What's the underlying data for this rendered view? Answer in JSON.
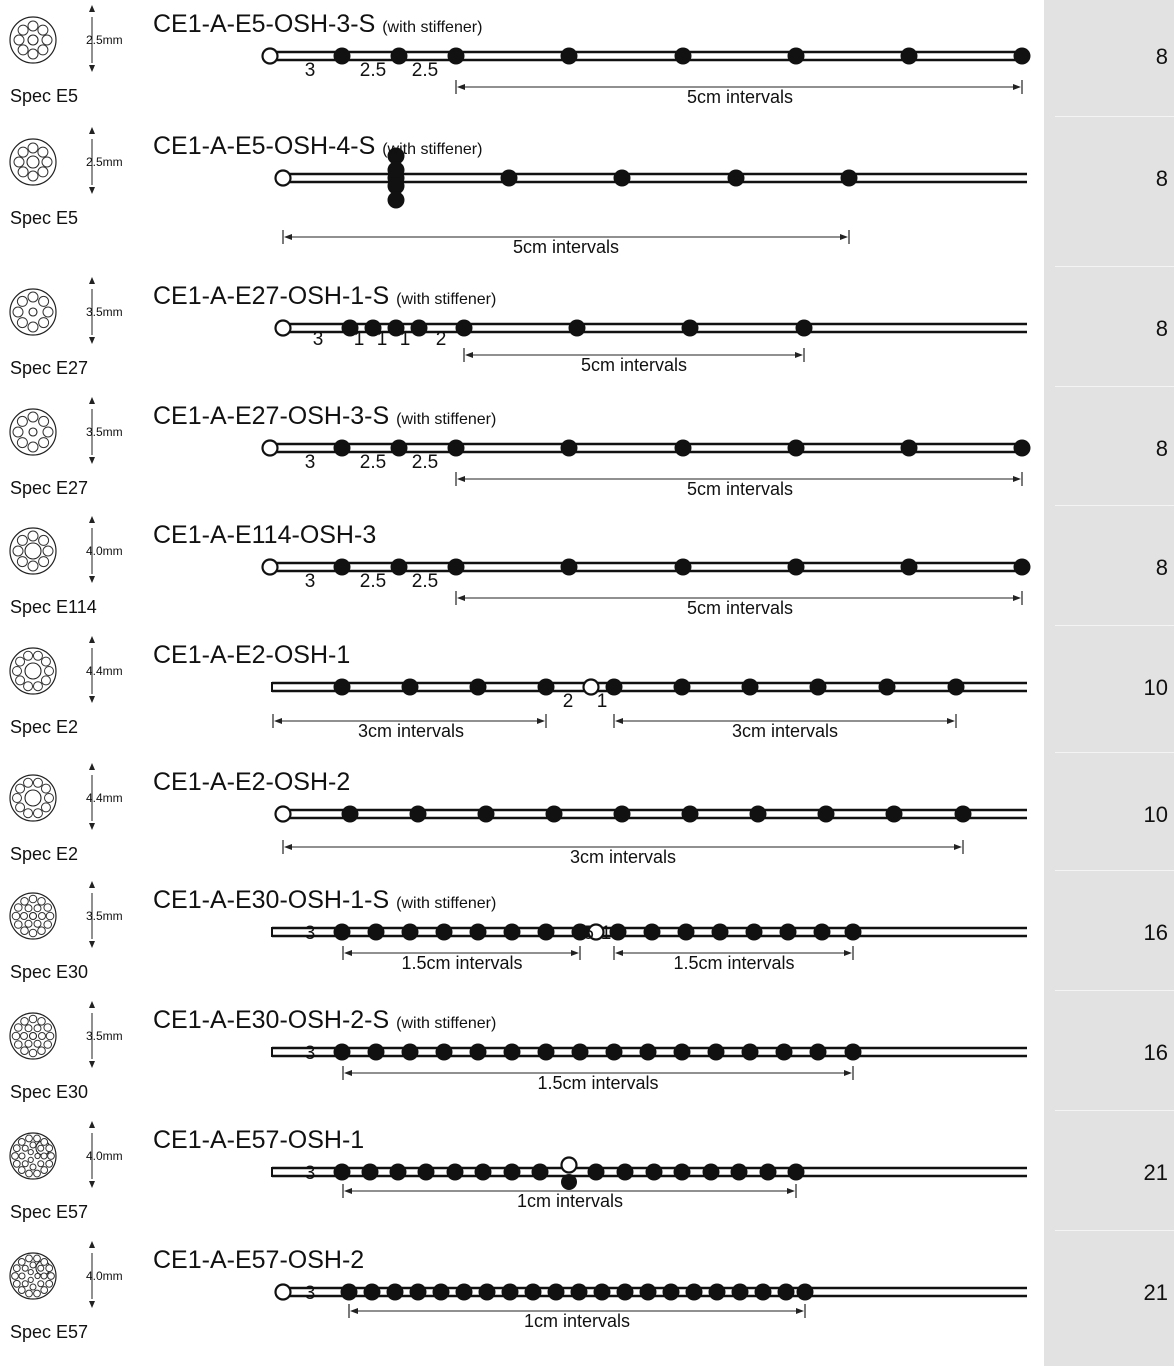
{
  "rows": [
    {
      "title": "CE1-A-E5-OSH-3-S",
      "note": "(with stiffener)",
      "spec": "Spec E5",
      "diameter": "2.5mm",
      "count": "8",
      "gaps": [
        {
          "x": 310,
          "t": "3"
        },
        {
          "x": 373,
          "t": "2.5"
        },
        {
          "x": 425,
          "t": "2.5"
        }
      ],
      "intervals": [
        {
          "label": "5cm intervals"
        }
      ]
    },
    {
      "title": "CE1-A-E5-OSH-4-S",
      "note": "(with stiffener)",
      "spec": "Spec E5",
      "diameter": "2.5mm",
      "count": "8",
      "gaps": [],
      "intervals": [
        {
          "label": "5cm intervals"
        }
      ]
    },
    {
      "title": "CE1-A-E27-OSH-1-S",
      "note": "(with stiffener)",
      "spec": "Spec E27",
      "diameter": "3.5mm",
      "count": "8",
      "gaps": [
        {
          "x": 318,
          "t": "3"
        },
        {
          "x": 359,
          "t": "1"
        },
        {
          "x": 382,
          "t": "1"
        },
        {
          "x": 405,
          "t": "1"
        },
        {
          "x": 441,
          "t": "2"
        }
      ],
      "intervals": [
        {
          "label": "5cm intervals"
        }
      ]
    },
    {
      "title": "CE1-A-E27-OSH-3-S",
      "note": "(with stiffener)",
      "spec": "Spec E27",
      "diameter": "3.5mm",
      "count": "8",
      "gaps": [
        {
          "x": 310,
          "t": "3"
        },
        {
          "x": 373,
          "t": "2.5"
        },
        {
          "x": 425,
          "t": "2.5"
        }
      ],
      "intervals": [
        {
          "label": "5cm intervals"
        }
      ]
    },
    {
      "title": "CE1-A-E114-OSH-3",
      "note": "",
      "spec": "Spec E114",
      "diameter": "4.0mm",
      "count": "8",
      "gaps": [
        {
          "x": 310,
          "t": "3"
        },
        {
          "x": 373,
          "t": "2.5"
        },
        {
          "x": 425,
          "t": "2.5"
        }
      ],
      "intervals": [
        {
          "label": "5cm intervals"
        }
      ]
    },
    {
      "title": "CE1-A-E2-OSH-1",
      "note": "",
      "spec": "Spec E2",
      "diameter": "4.4mm",
      "count": "10",
      "gaps": [
        {
          "x": 568,
          "t": "2"
        },
        {
          "x": 602,
          "t": "1"
        }
      ],
      "intervals": [
        {
          "label": "3cm intervals"
        },
        {
          "label": "3cm intervals"
        }
      ]
    },
    {
      "title": "CE1-A-E2-OSH-2",
      "note": "",
      "spec": "Spec E2",
      "diameter": "4.4mm",
      "count": "10",
      "gaps": [],
      "intervals": [
        {
          "label": "3cm intervals"
        }
      ]
    },
    {
      "title": "CE1-A-E30-OSH-1-S",
      "note": "(with stiffener)",
      "spec": "Spec E30",
      "diameter": "3.5mm",
      "count": "16",
      "gaps": [
        {
          "x": 310,
          "t": "3"
        },
        {
          "x": 586,
          "t": ".5"
        },
        {
          "x": 606,
          "t": "1"
        }
      ],
      "intervals": [
        {
          "label": "1.5cm intervals"
        },
        {
          "label": "1.5cm intervals"
        }
      ]
    },
    {
      "title": "CE1-A-E30-OSH-2-S",
      "note": "(with stiffener)",
      "spec": "Spec E30",
      "diameter": "3.5mm",
      "count": "16",
      "gaps": [
        {
          "x": 310,
          "t": "3"
        }
      ],
      "intervals": [
        {
          "label": "1.5cm intervals"
        }
      ]
    },
    {
      "title": "CE1-A-E57-OSH-1",
      "note": "",
      "spec": "Spec E57",
      "diameter": "4.0mm",
      "count": "21",
      "gaps": [
        {
          "x": 310,
          "t": "3"
        }
      ],
      "intervals": [
        {
          "label": "1cm intervals"
        }
      ]
    },
    {
      "title": "CE1-A-E57-OSH-2",
      "note": "",
      "spec": "Spec E57",
      "diameter": "4.0mm",
      "count": "21",
      "gaps": [
        {
          "x": 310,
          "t": "3"
        }
      ],
      "intervals": [
        {
          "label": "1cm intervals"
        }
      ]
    }
  ]
}
